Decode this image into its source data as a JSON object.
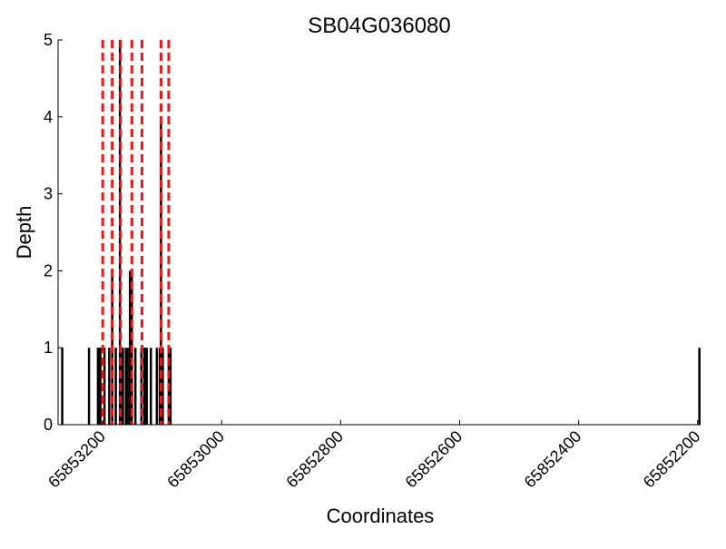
{
  "chart_data": {
    "type": "bar",
    "title": "SB04G036080",
    "xlabel": "Coordinates",
    "ylabel": "Depth",
    "x_reversed": true,
    "xlim": [
      65853275,
      65852195
    ],
    "ylim": [
      0,
      5
    ],
    "xticks": [
      65853200,
      65853000,
      65852800,
      65852600,
      65852400,
      65852200
    ],
    "xtick_labels": [
      "65853200",
      "65853000",
      "65852800",
      "65852600",
      "65852400",
      "65852200"
    ],
    "yticks": [
      0,
      1,
      2,
      3,
      4,
      5
    ],
    "ytick_labels": [
      "0",
      "1",
      "2",
      "3",
      "4",
      "5"
    ],
    "grid": false,
    "series": [
      {
        "values": [
          {
            "x": 65853268,
            "y": 1
          },
          {
            "x": 65853223,
            "y": 1
          },
          {
            "x": 65853208,
            "y": 1
          },
          {
            "x": 65853206,
            "y": 1
          },
          {
            "x": 65853204,
            "y": 1
          },
          {
            "x": 65853197,
            "y": 1
          },
          {
            "x": 65853189,
            "y": 1
          },
          {
            "x": 65853184,
            "y": 2
          },
          {
            "x": 65853178,
            "y": 1
          },
          {
            "x": 65853171,
            "y": 5
          },
          {
            "x": 65853168,
            "y": 1
          },
          {
            "x": 65853166,
            "y": 1
          },
          {
            "x": 65853161,
            "y": 1
          },
          {
            "x": 65853158,
            "y": 1
          },
          {
            "x": 65853154,
            "y": 2
          },
          {
            "x": 65853151,
            "y": 2
          },
          {
            "x": 65853145,
            "y": 1
          },
          {
            "x": 65853135,
            "y": 1
          },
          {
            "x": 65853130,
            "y": 1
          },
          {
            "x": 65853129,
            "y": 1
          },
          {
            "x": 65853126,
            "y": 1
          },
          {
            "x": 65853119,
            "y": 1
          },
          {
            "x": 65853109,
            "y": 1
          },
          {
            "x": 65853104,
            "y": 1
          },
          {
            "x": 65853102,
            "y": 4
          },
          {
            "x": 65853099,
            "y": 1
          },
          {
            "x": 65853089,
            "y": 1
          },
          {
            "x": 65853086,
            "y": 1
          },
          {
            "x": 65852197,
            "y": 1
          }
        ],
        "color": "#000000"
      }
    ],
    "reference_lines": {
      "x": [
        65853200,
        65853184,
        65853170,
        65853151,
        65853134,
        65853102,
        65853089
      ],
      "color": "#e31a1c",
      "style": "dashed"
    }
  }
}
